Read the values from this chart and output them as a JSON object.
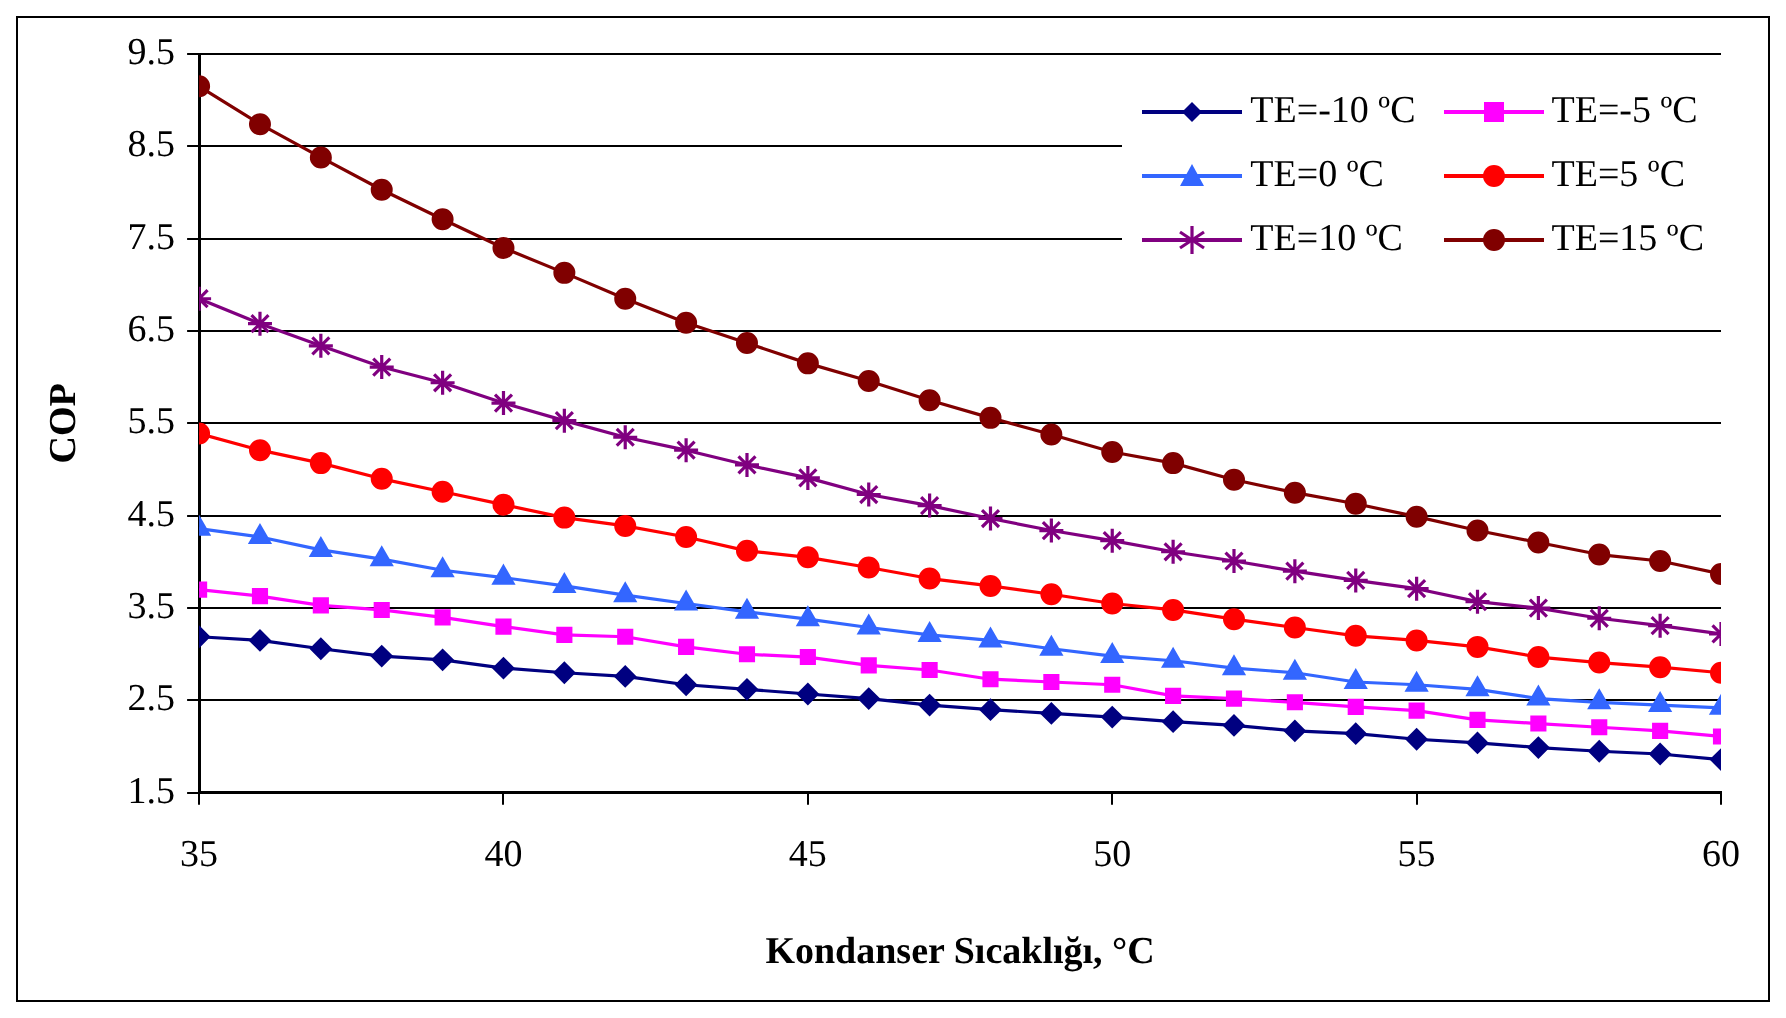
{
  "chart_data": {
    "type": "line",
    "xlabel": "Kondanser Sıcaklığı, °C",
    "ylabel": "COP",
    "x": [
      35,
      36,
      37,
      38,
      39,
      40,
      41,
      42,
      43,
      44,
      45,
      46,
      47,
      48,
      49,
      50,
      51,
      52,
      53,
      54,
      55,
      56,
      57,
      58,
      59,
      60
    ],
    "xlim": [
      35,
      60
    ],
    "xticks": [
      35,
      40,
      45,
      50,
      55,
      60
    ],
    "ylim": [
      1.5,
      9.5
    ],
    "yticks": [
      1.5,
      2.5,
      3.5,
      4.5,
      5.5,
      6.5,
      7.5,
      8.5,
      9.5
    ],
    "grid": "y",
    "legend": "top right",
    "series": [
      {
        "name": "TE=-10 ºC",
        "color": "#000080",
        "marker": "diamond",
        "values": [
          3.19,
          3.15,
          3.06,
          2.98,
          2.94,
          2.85,
          2.8,
          2.76,
          2.67,
          2.62,
          2.57,
          2.52,
          2.45,
          2.4,
          2.36,
          2.32,
          2.27,
          2.23,
          2.17,
          2.14,
          2.08,
          2.04,
          1.99,
          1.95,
          1.92,
          1.86
        ]
      },
      {
        "name": "TE=-5 ºC",
        "color": "#ff00ff",
        "marker": "square",
        "values": [
          3.7,
          3.63,
          3.53,
          3.48,
          3.4,
          3.3,
          3.21,
          3.19,
          3.08,
          3.0,
          2.97,
          2.88,
          2.83,
          2.73,
          2.7,
          2.67,
          2.55,
          2.52,
          2.48,
          2.43,
          2.39,
          2.29,
          2.25,
          2.21,
          2.17,
          2.11
        ]
      },
      {
        "name": "TE=0 ºC",
        "color": "#3366ff",
        "marker": "triangle",
        "values": [
          4.36,
          4.27,
          4.13,
          4.03,
          3.91,
          3.83,
          3.74,
          3.64,
          3.55,
          3.46,
          3.38,
          3.29,
          3.21,
          3.15,
          3.06,
          2.98,
          2.93,
          2.85,
          2.8,
          2.7,
          2.67,
          2.62,
          2.52,
          2.48,
          2.45,
          2.42
        ]
      },
      {
        "name": "TE=5 ºC",
        "color": "#ff0000",
        "marker": "circle",
        "values": [
          5.39,
          5.21,
          5.07,
          4.9,
          4.76,
          4.62,
          4.48,
          4.39,
          4.27,
          4.12,
          4.05,
          3.94,
          3.82,
          3.74,
          3.65,
          3.55,
          3.48,
          3.38,
          3.29,
          3.2,
          3.15,
          3.08,
          2.97,
          2.91,
          2.86,
          2.8
        ]
      },
      {
        "name": "TE=10 ºC",
        "color": "#800080",
        "marker": "cross",
        "values": [
          6.85,
          6.58,
          6.34,
          6.11,
          5.94,
          5.72,
          5.53,
          5.35,
          5.21,
          5.05,
          4.91,
          4.73,
          4.61,
          4.47,
          4.34,
          4.23,
          4.11,
          4.01,
          3.9,
          3.8,
          3.71,
          3.57,
          3.5,
          3.39,
          3.31,
          3.22
        ]
      },
      {
        "name": "TE=15 ºC",
        "color": "#800000",
        "marker": "circle",
        "values": [
          9.15,
          8.74,
          8.38,
          8.03,
          7.71,
          7.4,
          7.13,
          6.85,
          6.59,
          6.37,
          6.15,
          5.96,
          5.75,
          5.56,
          5.38,
          5.19,
          5.07,
          4.89,
          4.75,
          4.63,
          4.49,
          4.34,
          4.21,
          4.08,
          4.01,
          3.87
        ]
      }
    ]
  }
}
